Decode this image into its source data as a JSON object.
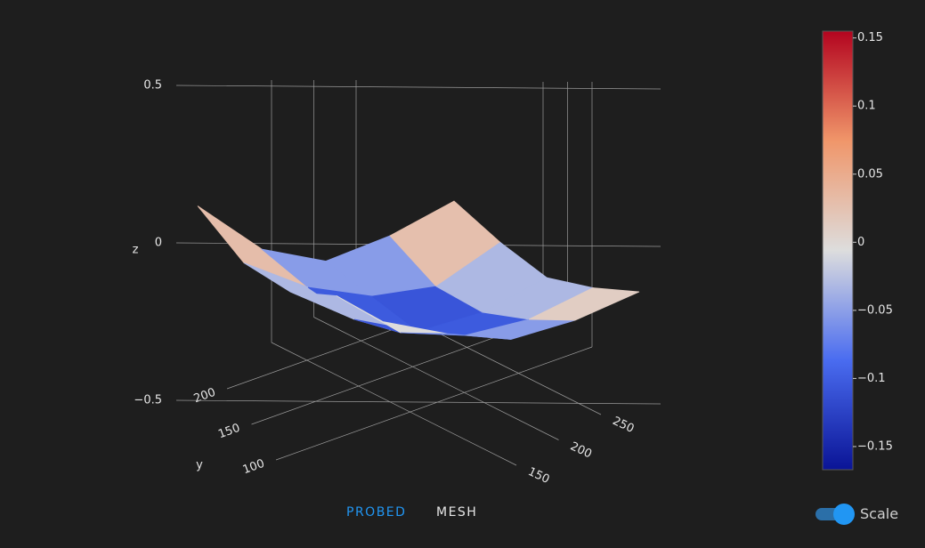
{
  "chart_data": {
    "type": "surface",
    "x": [
      110,
      150,
      190,
      230,
      270
    ],
    "y": [
      110,
      150,
      190,
      230,
      270
    ],
    "z": [
      [
        0.03,
        -0.02,
        -0.05,
        0.0,
        0.08
      ],
      [
        0.05,
        -0.08,
        -0.1,
        -0.06,
        0.03
      ],
      [
        0.0,
        -0.1,
        -0.15,
        -0.1,
        0.0
      ],
      [
        0.03,
        -0.06,
        -0.1,
        -0.08,
        0.05
      ],
      [
        0.15,
        0.0,
        -0.05,
        0.02,
        0.12
      ]
    ],
    "xticks": [
      150,
      200,
      250
    ],
    "yticks": [
      100,
      150,
      200
    ],
    "zticks": [
      {
        "value": -0.5,
        "label": "−0.5"
      },
      0,
      0.5
    ],
    "ylabel": "y",
    "zlabel": "z",
    "colorscale": [
      "#0a1496",
      "#4a6cf0",
      "#dddddd",
      "#f0966a",
      "#b3041f"
    ],
    "clim": [
      -0.167,
      0.155
    ],
    "cticks": [
      {
        "value": -0.15,
        "label": "−0.15"
      },
      {
        "value": -0.1,
        "label": "−0.1"
      },
      {
        "value": -0.05,
        "label": "−0.05"
      },
      0,
      0.05,
      0.1,
      0.15
    ]
  },
  "tabs": [
    "PROBED",
    "MESH"
  ],
  "toggle_label": "Scale"
}
